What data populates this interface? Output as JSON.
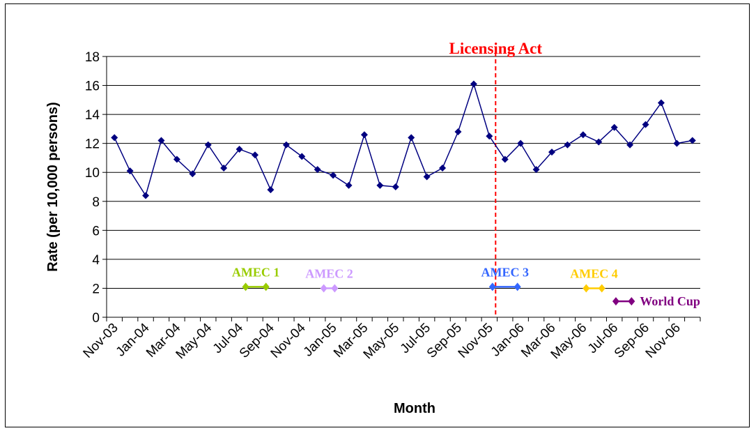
{
  "chart_data": {
    "type": "line",
    "xlabel": "Month",
    "ylabel": "Rate (per 10,000 persons)",
    "ylim": [
      0,
      18
    ],
    "yticks": [
      0,
      2,
      4,
      6,
      8,
      10,
      12,
      14,
      16,
      18
    ],
    "grid": true,
    "x_tick_labels": [
      "Nov-03",
      "Jan-04",
      "Mar-04",
      "May-04",
      "Jul-04",
      "Sep-04",
      "Nov-04",
      "Jan-05",
      "Mar-05",
      "May-05",
      "Jul-05",
      "Sep-05",
      "Nov-05",
      "Jan-06",
      "Mar-06",
      "May-06",
      "Jul-06",
      "Sep-06",
      "Nov-06"
    ],
    "x": [
      "Nov-03",
      "Dec-03",
      "Jan-04",
      "Feb-04",
      "Mar-04",
      "Apr-04",
      "May-04",
      "Jun-04",
      "Jul-04",
      "Aug-04",
      "Sep-04",
      "Oct-04",
      "Nov-04",
      "Dec-04",
      "Jan-05",
      "Feb-05",
      "Mar-05",
      "Apr-05",
      "May-05",
      "Jun-05",
      "Jul-05",
      "Aug-05",
      "Sep-05",
      "Oct-05",
      "Nov-05",
      "Dec-05",
      "Jan-06",
      "Feb-06",
      "Mar-06",
      "Apr-06",
      "May-06",
      "Jun-06",
      "Jul-06",
      "Aug-06",
      "Sep-06",
      "Oct-06",
      "Nov-06",
      "Dec-06"
    ],
    "series": [
      {
        "values": [
          12.4,
          10.1,
          8.4,
          12.2,
          10.9,
          9.9,
          11.9,
          10.3,
          11.6,
          11.2,
          8.8,
          11.9,
          11.1,
          10.2,
          9.8,
          9.1,
          12.6,
          9.1,
          9.0,
          12.4,
          9.7,
          10.3,
          12.8,
          16.1,
          12.5,
          10.9,
          12.0,
          10.2,
          11.4,
          11.9,
          12.6,
          12.1,
          13.1,
          11.9,
          13.3,
          14.8,
          12.0,
          12.2
        ],
        "color": "#000080"
      }
    ],
    "vline": {
      "label": "Licensing Act",
      "x": 24.4,
      "color": "#ff0000"
    },
    "events": [
      {
        "label": "AMEC 1",
        "start": 8.4,
        "end": 9.7,
        "y": 2.1,
        "color": "#99cc00"
      },
      {
        "label": "AMEC 2",
        "start": 13.4,
        "end": 14.1,
        "y": 2.0,
        "color": "#cc99ff"
      },
      {
        "label": "AMEC 3",
        "start": 24.2,
        "end": 25.8,
        "y": 2.1,
        "color": "#3366ff"
      },
      {
        "label": "AMEC 4",
        "start": 30.2,
        "end": 31.2,
        "y": 2.0,
        "color": "#ffcc00"
      },
      {
        "label": "World Cup",
        "start": 32.1,
        "end": 33.1,
        "y": 1.1,
        "color": "#800080"
      }
    ]
  }
}
